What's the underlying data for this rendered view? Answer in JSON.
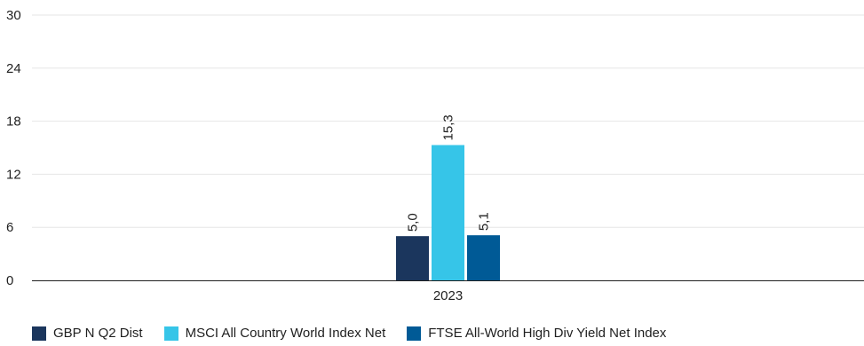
{
  "chart_data": {
    "type": "bar",
    "categories": [
      "2023"
    ],
    "series": [
      {
        "name": "GBP N Q2 Dist",
        "values": [
          5.0
        ],
        "labels": [
          "5,0"
        ],
        "color": "#1b365d"
      },
      {
        "name": "MSCI All Country World Index Net",
        "values": [
          15.3
        ],
        "labels": [
          "15,3"
        ],
        "color": "#36c5e8"
      },
      {
        "name": "FTSE All-World High Div Yield Net Index",
        "values": [
          5.1
        ],
        "labels": [
          "5,1"
        ],
        "color": "#005a96"
      }
    ],
    "title": "",
    "xlabel": "",
    "ylabel": "",
    "ylim": [
      0,
      30
    ],
    "yticks": [
      0,
      6,
      12,
      18,
      24,
      30
    ],
    "grid": true,
    "legend_position": "bottom-left",
    "label_orientation": "vertical"
  }
}
